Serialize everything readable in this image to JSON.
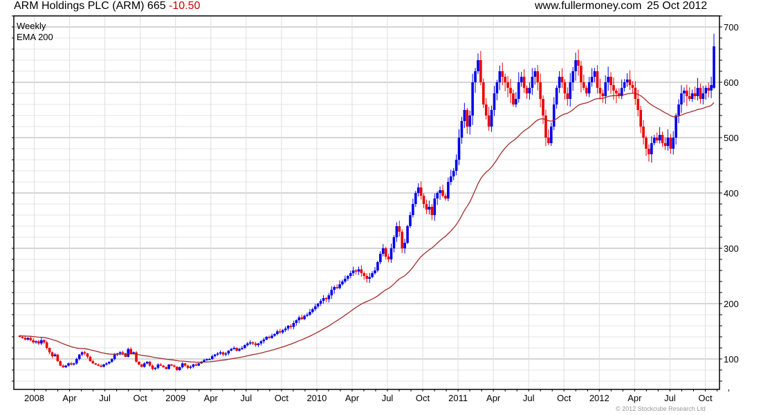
{
  "header": {
    "title": "ARM Holdings PLC (ARM) 665",
    "change": "-10.50",
    "site": "www.fullermoney.com",
    "date": "25 Oct 2012"
  },
  "footer": {
    "copyright": "© 2012 Stockcube Research Ltd"
  },
  "colors": {
    "up": "#0000ee",
    "down": "#ee0000",
    "ema": "#a52a2a",
    "legend_weekly": "#0000cc",
    "legend_ema": "#a52a2a"
  },
  "chart_data": {
    "type": "candlestick",
    "title": "ARM Holdings PLC (ARM) 665 -10.50",
    "legend": [
      "Weekly",
      "EMA 200"
    ],
    "legend_placement": "top-left",
    "ylim": [
      45,
      720
    ],
    "yticks": [
      100,
      200,
      300,
      400,
      500,
      600,
      700
    ],
    "xticks": [
      "2008",
      "Apr",
      "Jul",
      "Oct",
      "2009",
      "Apr",
      "Jul",
      "Oct",
      "2010",
      "Apr",
      "Jul",
      "Oct",
      "2011",
      "Apr",
      "Jul",
      "Oct",
      "2012",
      "Apr",
      "Jul",
      "Oct"
    ],
    "grid": true,
    "weekly_close": [
      140,
      138,
      135,
      138,
      134,
      130,
      132,
      128,
      134,
      130,
      120,
      112,
      105,
      108,
      96,
      88,
      85,
      88,
      92,
      90,
      92,
      100,
      108,
      112,
      110,
      104,
      96,
      92,
      90,
      88,
      86,
      90,
      92,
      95,
      100,
      108,
      110,
      112,
      110,
      104,
      118,
      110,
      112,
      95,
      90,
      86,
      92,
      95,
      88,
      82,
      84,
      90,
      88,
      85,
      82,
      90,
      88,
      86,
      80,
      85,
      92,
      88,
      84,
      86,
      90,
      88,
      92,
      95,
      98,
      100,
      100,
      105,
      108,
      110,
      112,
      108,
      110,
      115,
      118,
      120,
      115,
      118,
      120,
      125,
      128,
      130,
      128,
      125,
      128,
      132,
      135,
      140,
      138,
      142,
      145,
      150,
      148,
      152,
      155,
      160,
      158,
      165,
      170,
      175,
      172,
      178,
      180,
      185,
      190,
      195,
      200,
      205,
      210,
      208,
      215,
      225,
      230,
      228,
      235,
      240,
      245,
      250,
      255,
      260,
      258,
      262,
      255,
      250,
      245,
      248,
      255,
      260,
      275,
      290,
      300,
      285,
      280,
      300,
      320,
      340,
      330,
      300,
      310,
      340,
      360,
      380,
      400,
      410,
      395,
      380,
      370,
      375,
      360,
      390,
      400,
      405,
      395,
      390,
      420,
      430,
      440,
      460,
      500,
      530,
      550,
      520,
      540,
      600,
      620,
      640,
      600,
      560,
      540,
      520,
      550,
      580,
      600,
      620,
      610,
      600,
      590,
      580,
      560,
      570,
      600,
      610,
      590,
      580,
      590,
      610,
      620,
      600,
      570,
      540,
      500,
      490,
      520,
      560,
      590,
      610,
      600,
      580,
      570,
      600,
      620,
      640,
      630,
      600,
      590,
      580,
      600,
      610,
      620,
      590,
      580,
      575,
      600,
      610,
      595,
      585,
      580,
      575,
      590,
      600,
      605,
      595,
      590,
      570,
      550,
      520,
      500,
      480,
      470,
      490,
      500,
      495,
      505,
      490,
      485,
      500,
      480,
      500,
      540,
      560,
      580,
      585,
      575,
      570,
      580,
      575,
      590,
      570,
      580,
      590,
      585,
      595,
      665
    ],
    "last": {
      "open": 590,
      "high": 688,
      "low": 588,
      "close": 665
    },
    "ema_start": 142
  }
}
